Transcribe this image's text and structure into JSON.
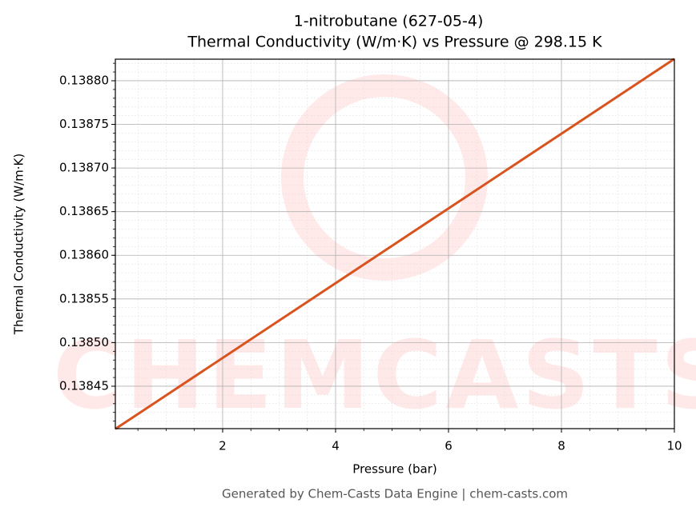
{
  "chart_data": {
    "type": "line",
    "title": "1-nitrobutane (627-05-4)",
    "subtitle": "Thermal Conductivity (W/m·K) vs Pressure @ 298.15 K",
    "x_label": "Pressure (bar)",
    "y_label": "Thermal Conductivity (W/m·K)",
    "watermark": "CHEMCASTS",
    "footer": "Generated by Chem-Casts Data Engine | chem-casts.com",
    "x": [
      0.1,
      10
    ],
    "series": [
      {
        "name": "Thermal Conductivity",
        "color": "#d9531e",
        "values": [
          0.138401,
          0.138825
        ]
      }
    ],
    "xlim": [
      0.1,
      10
    ],
    "xticks": [
      2,
      4,
      6,
      8,
      10
    ],
    "ylim": [
      0.1384014,
      0.1388247
    ],
    "yticks": [
      {
        "value": 0.13845,
        "label": "0.13845"
      },
      {
        "value": 0.1385,
        "label": "0.13850"
      },
      {
        "value": 0.13855,
        "label": "0.13855"
      },
      {
        "value": 0.1386,
        "label": "0.13860"
      },
      {
        "value": 0.13865,
        "label": "0.13865"
      },
      {
        "value": 0.1387,
        "label": "0.13870"
      },
      {
        "value": 0.13875,
        "label": "0.13875"
      },
      {
        "value": 0.1388,
        "label": "0.13880"
      }
    ],
    "grid": true
  }
}
